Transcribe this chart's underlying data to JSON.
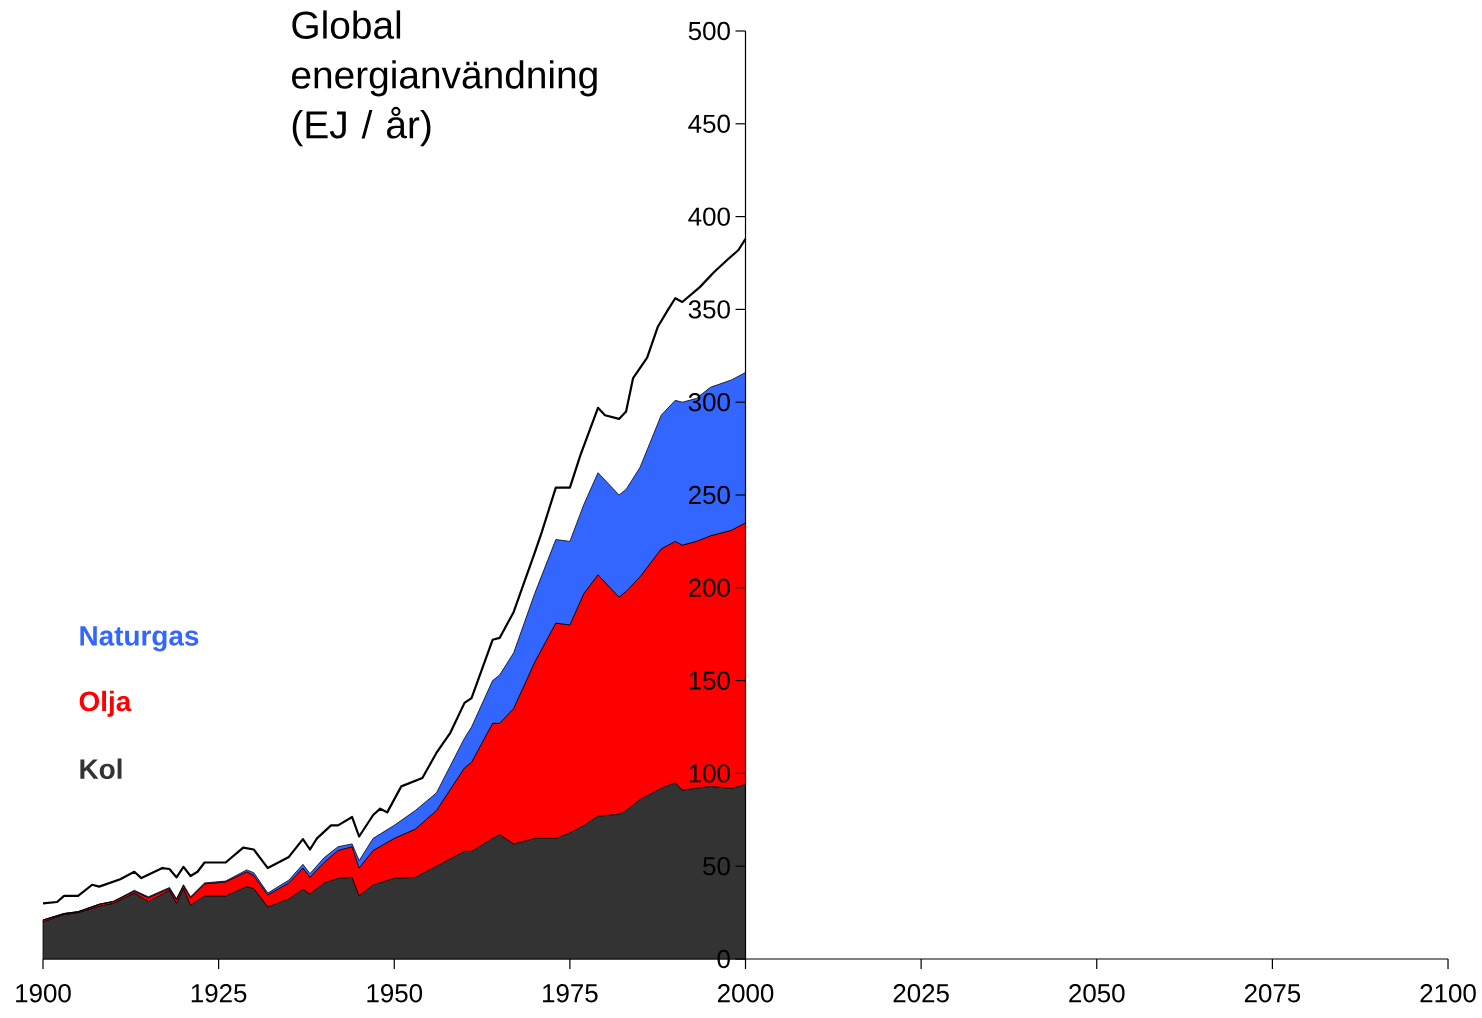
{
  "chart_data": {
    "type": "area",
    "title": "Global energianvändning (EJ / år)",
    "stacked": true,
    "legend": "left",
    "x": [
      1900,
      1903,
      1905,
      1908,
      1910,
      1913,
      1915,
      1918,
      1919,
      1920,
      1921,
      1923,
      1926,
      1929,
      1930,
      1932,
      1935,
      1937,
      1938,
      1940,
      1942,
      1944,
      1945,
      1947,
      1950,
      1953,
      1956,
      1960,
      1961,
      1964,
      1965,
      1967,
      1970,
      1973,
      1975,
      1977,
      1979,
      1982,
      1983,
      1985,
      1988,
      1990,
      1991,
      1993,
      1995,
      1998,
      2000
    ],
    "xlim": [
      1900,
      2100
    ],
    "xticks": [
      1900,
      1925,
      1950,
      1975,
      2000,
      2025,
      2050,
      2075,
      2100
    ],
    "ylim": [
      0,
      500
    ],
    "yticks": [
      0,
      50,
      100,
      150,
      200,
      250,
      300,
      350,
      400,
      450,
      500
    ],
    "series": [
      {
        "name": "Kol",
        "color": "#333333",
        "values": [
          20,
          24,
          25,
          28.5,
          30,
          35.5,
          31,
          37,
          30,
          38,
          29,
          34,
          34,
          39,
          38,
          28,
          32.5,
          37.5,
          35,
          41,
          43.5,
          44,
          34,
          40,
          43.5,
          44,
          50,
          58,
          58,
          65,
          67,
          62,
          65,
          65,
          68,
          72,
          77,
          78,
          80,
          86,
          92,
          95,
          91,
          92,
          93,
          92,
          94
        ]
      },
      {
        "name": "Olja",
        "color": "#ff0000",
        "values": [
          1,
          0.5,
          0.5,
          1,
          1,
          1,
          2,
          1,
          2,
          1.5,
          4,
          6.5,
          7.5,
          8,
          7,
          6.5,
          8.5,
          11.5,
          9,
          11,
          15,
          16.5,
          15,
          18.5,
          21.5,
          26,
          30,
          45,
          48,
          62,
          60,
          73,
          95,
          116,
          112,
          125,
          130,
          117,
          118,
          120,
          129,
          130,
          132,
          133,
          135,
          139,
          141
        ]
      },
      {
        "name": "Naturgas",
        "color": "#3366ff",
        "values": [
          0,
          0,
          0,
          0,
          0,
          0.5,
          0.5,
          0.5,
          0.5,
          0.5,
          0.5,
          0.5,
          0.5,
          1,
          1.5,
          1,
          1.5,
          2,
          2,
          2.5,
          2,
          1.5,
          4,
          6.5,
          7,
          10,
          9.5,
          16,
          19,
          23,
          26,
          30,
          37,
          45,
          45,
          48,
          55,
          55,
          55,
          59,
          72,
          76,
          77,
          77,
          80,
          81,
          81
        ]
      },
      {
        "type": "line",
        "color": "#000000",
        "x": [
          1900,
          1902,
          1903,
          1905,
          1907,
          1908,
          1911,
          1913,
          1914,
          1917,
          1918,
          1919,
          1920,
          1921,
          1922,
          1923,
          1926,
          1928.5,
          1930,
          1932,
          1934,
          1935,
          1937,
          1938,
          1939,
          1941,
          1942,
          1944,
          1945,
          1947,
          1948,
          1949,
          1951,
          1954,
          1956,
          1958,
          1960,
          1961,
          1964,
          1965,
          1967,
          1970,
          1971,
          1973,
          1975,
          1976.5,
          1979,
          1980,
          1982,
          1983,
          1984,
          1986,
          1987.5,
          1989,
          1990,
          1991,
          1993.5,
          1995.5,
          1997.5,
          1999,
          2000
        ],
        "values": [
          30,
          30.7,
          34,
          34,
          40,
          39,
          43,
          47,
          43.6,
          49,
          48.5,
          44,
          49.6,
          44.7,
          47,
          52,
          52,
          60,
          59,
          49,
          53,
          55,
          64.6,
          59,
          65,
          72,
          72,
          76.5,
          66,
          77.6,
          81,
          79,
          93,
          97.5,
          111,
          122,
          138,
          140.6,
          172,
          173,
          187,
          219,
          230,
          254,
          254,
          271.5,
          297,
          293,
          291,
          295,
          313,
          324,
          340.5,
          350,
          356,
          354,
          362,
          370,
          377,
          382,
          388
        ]
      }
    ]
  }
}
